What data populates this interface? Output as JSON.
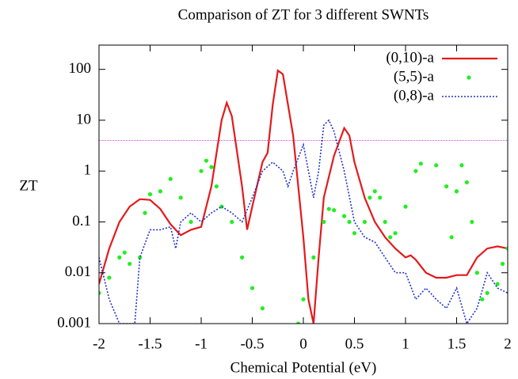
{
  "chart_data": {
    "type": "line",
    "title": "Comparison of ZT for 3 different SWNTs",
    "x_label": "Chemical Potential (eV)",
    "y_label": "ZT",
    "log_y": true,
    "legend": "upper right",
    "xlim": [
      -2,
      2
    ],
    "xticks": [
      -2,
      -1.5,
      -1,
      -0.5,
      0,
      0.5,
      1,
      1.5,
      2
    ],
    "ylim": [
      0.001,
      300
    ],
    "yticks": [
      0.001,
      0.01,
      0.1,
      1,
      10,
      100
    ],
    "reference_line": {
      "value": 4,
      "color": "#cc44cc"
    },
    "series": [
      {
        "name": "(0,10)-a",
        "color": "#e31a1c",
        "style": "solid",
        "x": [
          -2,
          -1.9,
          -1.8,
          -1.7,
          -1.6,
          -1.5,
          -1.4,
          -1.3,
          -1.2,
          -1.1,
          -1.0,
          -0.9,
          -0.8,
          -0.75,
          -0.7,
          -0.6,
          -0.55,
          -0.5,
          -0.4,
          -0.35,
          -0.3,
          -0.25,
          -0.2,
          -0.1,
          0,
          0.05,
          0.1,
          0.15,
          0.2,
          0.3,
          0.4,
          0.45,
          0.5,
          0.6,
          0.7,
          0.8,
          0.9,
          1.0,
          1.05,
          1.1,
          1.2,
          1.3,
          1.4,
          1.5,
          1.6,
          1.7,
          1.8,
          1.9,
          2
        ],
        "values": [
          0.006,
          0.03,
          0.1,
          0.2,
          0.28,
          0.27,
          0.18,
          0.09,
          0.055,
          0.07,
          0.08,
          0.5,
          10,
          22,
          12,
          0.5,
          0.07,
          0.2,
          1.5,
          2.3,
          20,
          95,
          80,
          5,
          0.05,
          0.003,
          0.001,
          0.02,
          0.3,
          2,
          7,
          5,
          1.5,
          0.3,
          0.1,
          0.05,
          0.03,
          0.02,
          0.022,
          0.018,
          0.01,
          0.008,
          0.008,
          0.009,
          0.009,
          0.02,
          0.03,
          0.033,
          0.03
        ]
      },
      {
        "name": "(5,5)-a",
        "color": "#22ee22",
        "style": "points",
        "x": [
          -2,
          -1.9,
          -1.8,
          -1.75,
          -1.7,
          -1.6,
          -1.55,
          -1.5,
          -1.4,
          -1.3,
          -1.2,
          -1.1,
          -1.0,
          -0.95,
          -0.9,
          -0.85,
          -0.8,
          -0.7,
          -0.6,
          -0.5,
          -0.4,
          -0.05,
          0,
          0.1,
          0.2,
          0.25,
          0.3,
          0.4,
          0.45,
          0.5,
          0.6,
          0.65,
          0.7,
          0.75,
          0.8,
          0.85,
          0.9,
          1.0,
          1.1,
          1.15,
          1.3,
          1.4,
          1.45,
          1.5,
          1.55,
          1.6,
          1.65,
          1.7,
          1.75,
          1.8,
          1.9,
          1.95,
          2
        ],
        "values": [
          0.004,
          0.008,
          0.02,
          0.025,
          0.015,
          0.02,
          0.15,
          0.35,
          0.4,
          0.7,
          0.3,
          0.1,
          1.0,
          1.6,
          1.2,
          0.5,
          0.2,
          0.1,
          0.02,
          0.005,
          0.002,
          0.001,
          0.003,
          0.02,
          0.1,
          0.18,
          0.17,
          0.13,
          0.1,
          0.06,
          0.1,
          0.3,
          0.4,
          0.3,
          0.1,
          0.05,
          0.06,
          0.2,
          1.0,
          1.4,
          1.3,
          0.5,
          0.05,
          0.4,
          1.3,
          0.6,
          0.1,
          0.01,
          0.003,
          0.004,
          0.006,
          0.015,
          0.03
        ]
      },
      {
        "name": "(0,8)-a",
        "color": "#2233cc",
        "style": "dotted",
        "x": [
          -2,
          -1.9,
          -1.8,
          -1.65,
          -1.6,
          -1.5,
          -1.4,
          -1.3,
          -1.25,
          -1.2,
          -1.1,
          -1.0,
          -0.9,
          -0.8,
          -0.7,
          -0.6,
          -0.5,
          -0.4,
          -0.3,
          -0.2,
          -0.15,
          -0.1,
          0,
          0.1,
          0.15,
          0.2,
          0.25,
          0.3,
          0.4,
          0.5,
          0.6,
          0.7,
          0.8,
          0.9,
          1.0,
          1.1,
          1.2,
          1.3,
          1.4,
          1.5,
          1.6,
          1.7,
          1.8,
          1.9,
          2
        ],
        "values": [
          0.02,
          0.003,
          0.001,
          0.001,
          0.02,
          0.07,
          0.07,
          0.08,
          0.03,
          0.1,
          0.15,
          0.1,
          0.15,
          0.2,
          0.15,
          0.1,
          0.3,
          1.0,
          1.5,
          1.0,
          0.5,
          1.0,
          3.3,
          0.3,
          1.0,
          8,
          10,
          6,
          1,
          0.1,
          0.05,
          0.04,
          0.02,
          0.01,
          0.01,
          0.003,
          0.005,
          0.003,
          0.002,
          0.005,
          0.001,
          0.002,
          0.01,
          0.005,
          0.004
        ]
      }
    ]
  }
}
